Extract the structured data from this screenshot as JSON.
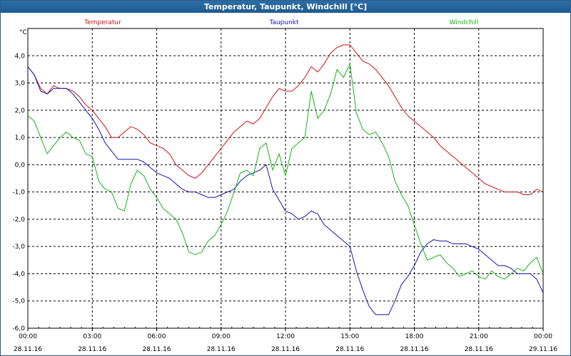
{
  "window": {
    "title": "Temperatur, Taupunkt, Windchill [°C]"
  },
  "chart_data": {
    "type": "line",
    "title": "Temperatur, Taupunkt, Windchill [°C]",
    "ylabel": "°C",
    "ylim": [
      -6.0,
      5.0
    ],
    "xlim": [
      0,
      24
    ],
    "grid": true,
    "yticks": [
      4.0,
      3.0,
      2.0,
      1.0,
      0.0,
      -1.0,
      -2.0,
      -3.0,
      -4.0,
      -5.0,
      -6.0
    ],
    "ytick_labels": [
      "4,0",
      "3,0",
      "2,0",
      "1,0",
      "0,0",
      "-1,0",
      "-2,0",
      "-3,0",
      "-4,0",
      "-5,0",
      "-6,0"
    ],
    "xticks": [
      {
        "x": 0,
        "time": "00:00",
        "date": "28.11.16"
      },
      {
        "x": 3,
        "time": "03:00",
        "date": "28.11.16"
      },
      {
        "x": 6,
        "time": "06:00",
        "date": "28.11.16"
      },
      {
        "x": 9,
        "time": "09:00",
        "date": "28.11.16"
      },
      {
        "x": 12,
        "time": "12:00",
        "date": "28.11.16"
      },
      {
        "x": 15,
        "time": "15:00",
        "date": "28.11.16"
      },
      {
        "x": 18,
        "time": "18:00",
        "date": "28.11.16"
      },
      {
        "x": 21,
        "time": "21:00",
        "date": "28.11.16"
      },
      {
        "x": 24,
        "time": "00:00",
        "date": "29.11.16"
      }
    ],
    "x_unit": "hours since 28.11.16 00:00",
    "series": [
      {
        "name": "Temperatur",
        "color": "#d01010",
        "x": [
          0,
          0.3,
          0.6,
          0.9,
          1.2,
          1.5,
          1.8,
          2.1,
          2.4,
          2.7,
          3.0,
          3.3,
          3.6,
          3.9,
          4.2,
          4.5,
          4.8,
          5.1,
          5.4,
          5.7,
          6.0,
          6.3,
          6.6,
          6.9,
          7.2,
          7.5,
          7.8,
          8.1,
          8.4,
          8.7,
          9.0,
          9.3,
          9.6,
          9.9,
          10.2,
          10.5,
          10.8,
          11.1,
          11.4,
          11.7,
          12.0,
          12.3,
          12.6,
          12.9,
          13.2,
          13.5,
          13.8,
          14.1,
          14.4,
          14.7,
          15.0,
          15.3,
          15.6,
          15.9,
          16.2,
          16.5,
          16.8,
          17.1,
          17.4,
          17.7,
          18.0,
          18.3,
          18.6,
          18.9,
          19.2,
          19.5,
          19.8,
          20.1,
          20.4,
          20.7,
          21.0,
          21.3,
          21.6,
          21.9,
          22.2,
          22.5,
          22.8,
          23.1,
          23.4,
          23.7,
          24.0
        ],
        "values": [
          3.6,
          3.3,
          2.8,
          2.6,
          2.9,
          2.8,
          2.8,
          2.7,
          2.5,
          2.2,
          2.0,
          1.7,
          1.4,
          1.0,
          1.0,
          1.2,
          1.4,
          1.3,
          1.1,
          0.8,
          0.7,
          0.6,
          0.4,
          0.0,
          -0.2,
          -0.4,
          -0.5,
          -0.3,
          0.0,
          0.3,
          0.6,
          0.9,
          1.2,
          1.4,
          1.6,
          1.5,
          1.7,
          2.1,
          2.5,
          2.8,
          2.7,
          2.7,
          2.9,
          3.2,
          3.6,
          3.4,
          3.7,
          4.1,
          4.3,
          4.4,
          4.4,
          4.1,
          3.8,
          3.7,
          3.5,
          3.2,
          2.9,
          2.5,
          2.1,
          1.8,
          1.6,
          1.4,
          1.2,
          1.0,
          0.7,
          0.5,
          0.3,
          0.1,
          -0.1,
          -0.3,
          -0.5,
          -0.7,
          -0.8,
          -0.9,
          -1.0,
          -1.0,
          -1.0,
          -1.1,
          -1.1,
          -0.9,
          -1.0
        ]
      },
      {
        "name": "Taupunkt",
        "color": "#1414b4",
        "x": [
          0,
          0.3,
          0.6,
          0.9,
          1.2,
          1.5,
          1.8,
          2.1,
          2.4,
          2.7,
          3.0,
          3.3,
          3.6,
          3.9,
          4.2,
          4.5,
          4.8,
          5.1,
          5.4,
          5.7,
          6.0,
          6.3,
          6.6,
          6.9,
          7.2,
          7.5,
          7.8,
          8.1,
          8.4,
          8.7,
          9.0,
          9.3,
          9.6,
          9.9,
          10.2,
          10.5,
          10.8,
          11.1,
          11.4,
          11.7,
          12.0,
          12.3,
          12.6,
          12.9,
          13.2,
          13.5,
          13.8,
          14.1,
          14.4,
          14.7,
          15.0,
          15.3,
          15.6,
          15.9,
          16.2,
          16.5,
          16.8,
          17.1,
          17.4,
          17.7,
          18.0,
          18.3,
          18.6,
          18.9,
          19.2,
          19.5,
          19.8,
          20.1,
          20.4,
          20.7,
          21.0,
          21.3,
          21.6,
          21.9,
          22.2,
          22.5,
          22.8,
          23.1,
          23.4,
          23.7,
          24.0
        ],
        "values": [
          3.6,
          3.3,
          2.7,
          2.6,
          2.8,
          2.8,
          2.8,
          2.6,
          2.3,
          2.0,
          1.7,
          1.3,
          0.8,
          0.5,
          0.2,
          0.2,
          0.2,
          0.2,
          0.1,
          -0.1,
          -0.3,
          -0.4,
          -0.5,
          -0.7,
          -0.9,
          -1.0,
          -1.0,
          -1.1,
          -1.2,
          -1.2,
          -1.1,
          -1.0,
          -0.9,
          -0.6,
          -0.4,
          -0.3,
          -0.2,
          0.0,
          -0.9,
          -1.3,
          -1.7,
          -1.8,
          -2.0,
          -1.9,
          -1.7,
          -1.8,
          -2.2,
          -2.4,
          -2.6,
          -2.8,
          -3.0,
          -3.9,
          -4.6,
          -5.2,
          -5.5,
          -5.5,
          -5.5,
          -5.0,
          -4.4,
          -4.1,
          -3.7,
          -3.2,
          -2.9,
          -2.75,
          -2.8,
          -2.8,
          -2.9,
          -2.9,
          -2.9,
          -3.0,
          -3.1,
          -3.3,
          -3.5,
          -3.7,
          -3.7,
          -3.8,
          -4.0,
          -4.0,
          -4.0,
          -4.2,
          -4.7
        ]
      },
      {
        "name": "Windchill",
        "color": "#14b414",
        "x": [
          0,
          0.3,
          0.6,
          0.9,
          1.2,
          1.5,
          1.8,
          2.1,
          2.4,
          2.7,
          3.0,
          3.3,
          3.6,
          3.9,
          4.2,
          4.5,
          4.8,
          5.1,
          5.4,
          5.7,
          6.0,
          6.3,
          6.6,
          6.9,
          7.2,
          7.5,
          7.8,
          8.1,
          8.4,
          8.7,
          9.0,
          9.3,
          9.6,
          9.9,
          10.2,
          10.5,
          10.8,
          11.1,
          11.4,
          11.7,
          12.0,
          12.3,
          12.6,
          12.9,
          13.2,
          13.5,
          13.8,
          14.1,
          14.4,
          14.7,
          15.0,
          15.3,
          15.6,
          15.9,
          16.2,
          16.5,
          16.8,
          17.1,
          17.4,
          17.7,
          18.0,
          18.3,
          18.6,
          18.9,
          19.2,
          19.5,
          19.8,
          20.1,
          20.4,
          20.7,
          21.0,
          21.3,
          21.6,
          21.9,
          22.2,
          22.5,
          22.8,
          23.1,
          23.4,
          23.7,
          24.0
        ],
        "values": [
          1.8,
          1.6,
          1.0,
          0.4,
          0.7,
          1.0,
          1.2,
          1.0,
          0.9,
          0.4,
          0.3,
          -0.6,
          -0.9,
          -1.0,
          -1.6,
          -1.7,
          -0.7,
          -0.2,
          -0.4,
          -0.9,
          -1.2,
          -1.6,
          -1.8,
          -2.0,
          -2.5,
          -3.2,
          -3.3,
          -3.2,
          -2.8,
          -2.6,
          -2.2,
          -1.7,
          -1.0,
          -0.3,
          -0.2,
          -0.4,
          0.6,
          0.8,
          -0.2,
          0.4,
          -0.4,
          0.6,
          0.8,
          1.0,
          2.7,
          1.7,
          2.0,
          2.6,
          3.5,
          3.2,
          3.7,
          1.9,
          1.3,
          1.1,
          1.2,
          0.8,
          0.3,
          -0.6,
          -1.1,
          -1.5,
          -2.2,
          -2.9,
          -3.5,
          -3.4,
          -3.3,
          -3.6,
          -3.8,
          -4.1,
          -4.0,
          -3.9,
          -4.1,
          -4.2,
          -3.9,
          -4.1,
          -4.2,
          -4.0,
          -3.8,
          -3.9,
          -3.6,
          -3.4,
          -4.0
        ]
      }
    ]
  }
}
